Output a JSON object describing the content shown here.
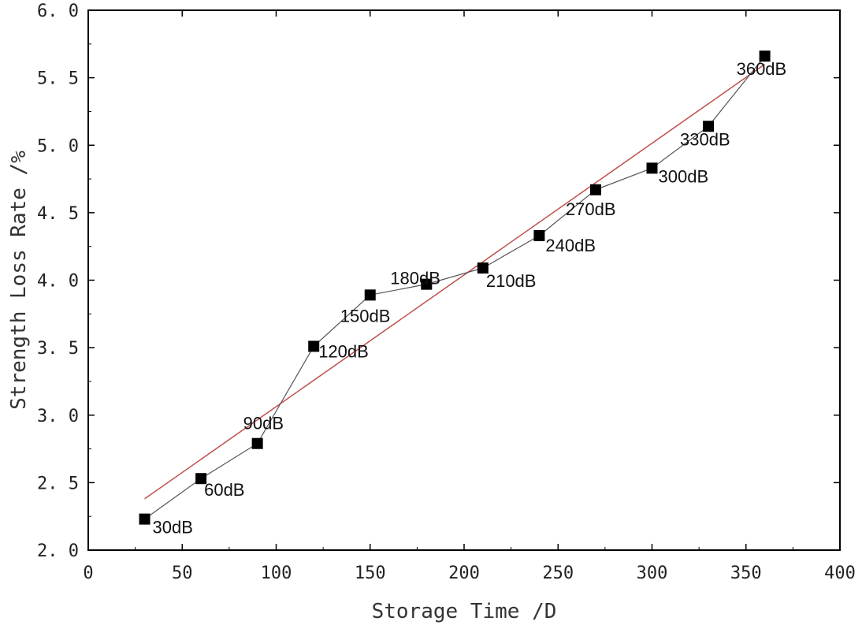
{
  "chart_data": {
    "type": "scatter",
    "xlabel": "Storage Time /D",
    "ylabel": "Strength Loss Rate /%",
    "xlim": [
      0,
      400
    ],
    "ylim": [
      2.0,
      6.0
    ],
    "xticks": [
      0,
      50,
      100,
      150,
      200,
      250,
      300,
      350,
      400
    ],
    "xtick_labels": [
      "0",
      "50",
      "100",
      "150",
      "200",
      "250",
      "300",
      "350",
      "400"
    ],
    "yticks": [
      2.0,
      2.5,
      3.0,
      3.5,
      4.0,
      4.5,
      5.0,
      5.5,
      6.0
    ],
    "ytick_labels": [
      "2. 0",
      "2. 5",
      "3. 0",
      "3. 5",
      "4. 0",
      "4. 5",
      "5. 0",
      "5. 5",
      "6. 0"
    ],
    "grid": false,
    "series": [
      {
        "x": [
          30,
          60,
          90,
          120,
          150,
          180,
          210,
          240,
          270,
          300,
          330,
          360
        ],
        "values": [
          2.23,
          2.53,
          2.79,
          3.51,
          3.89,
          3.97,
          4.09,
          4.33,
          4.67,
          4.83,
          5.14,
          5.66
        ],
        "labels": [
          "30dB",
          "60dB",
          "90dB",
          "120dB",
          "150dB",
          "180dB",
          "210dB",
          "240dB",
          "270dB",
          "300dB",
          "330dB",
          "360dB"
        ],
        "marker": "square",
        "color": "#000000",
        "line_color": "#555555"
      }
    ],
    "fit_line": {
      "type": "linear",
      "x": [
        30,
        360
      ],
      "values": [
        2.38,
        5.6
      ],
      "color": "#c0504d"
    }
  }
}
